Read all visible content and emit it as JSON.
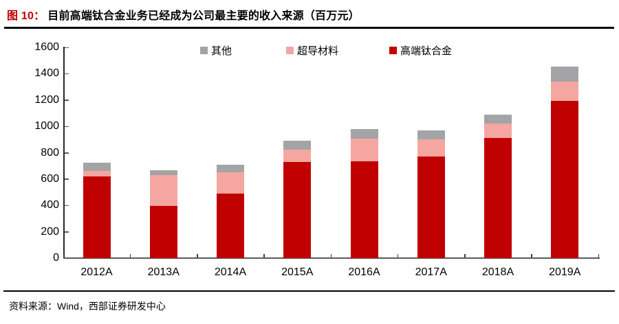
{
  "header": {
    "title_prefix": "图 10：",
    "title_text": "目前高端钛合金业务已经成为公司最主要的收入来源（百万元）"
  },
  "chart_data": {
    "type": "bar",
    "subtype": "stacked",
    "title": "目前高端钛合金业务已经成为公司最主要的收入来源（百万元）",
    "xlabel": "",
    "ylabel": "",
    "unit": "百万元",
    "categories": [
      "2012A",
      "2013A",
      "2014A",
      "2015A",
      "2016A",
      "2017A",
      "2018A",
      "2019A"
    ],
    "series": [
      {
        "name": "高端钛合金",
        "color": "#c00000",
        "values": [
          620,
          395,
          490,
          730,
          735,
          770,
          910,
          1195
        ]
      },
      {
        "name": "超导材料",
        "color": "#f5a6a0",
        "values": [
          40,
          235,
          160,
          95,
          170,
          130,
          110,
          145
        ]
      },
      {
        "name": "其他",
        "color": "#a3a4a6",
        "values": [
          65,
          35,
          60,
          65,
          75,
          70,
          70,
          115
        ]
      }
    ],
    "totals": [
      725,
      665,
      710,
      890,
      980,
      970,
      1090,
      1455
    ],
    "ylim": [
      0,
      1600
    ],
    "yticks": [
      0,
      200,
      400,
      600,
      800,
      1000,
      1200,
      1400,
      1600
    ],
    "grid": false,
    "legend_position": "top"
  },
  "footer": {
    "source": "资料来源：Wind，西部证券研发中心"
  }
}
